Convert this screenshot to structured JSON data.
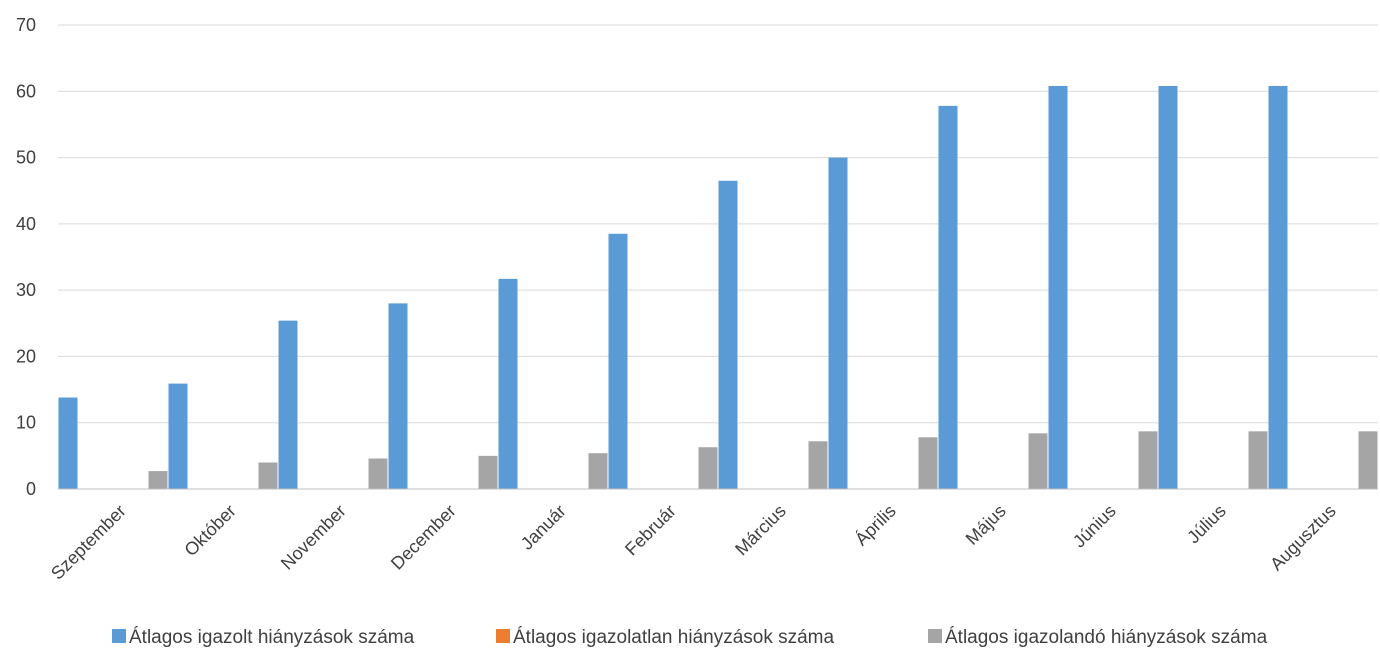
{
  "chart_data": {
    "type": "bar",
    "categories": [
      "Szeptember",
      "Október",
      "November",
      "December",
      "Január",
      "Február",
      "Március",
      "Április",
      "Május",
      "Június",
      "Július",
      "Augusztus"
    ],
    "series": [
      {
        "name": "Átlagos igazolt hiányzások száma",
        "color": "#5b9bd5",
        "values": [
          13.8,
          15.9,
          25.4,
          28.0,
          31.7,
          38.5,
          46.5,
          50.0,
          57.8,
          60.8,
          60.8,
          60.8
        ]
      },
      {
        "name": "Átlagos igazolatlan hiányzások száma",
        "color": "#ed7d31",
        "values": [
          0,
          0,
          0,
          0,
          0,
          0,
          0,
          0,
          0,
          0,
          0,
          0
        ]
      },
      {
        "name": "Átlagos igazolandó hiányzások száma",
        "color": "#a5a5a5",
        "values": [
          2.7,
          4.0,
          4.6,
          5.0,
          5.4,
          6.3,
          7.2,
          7.8,
          8.4,
          8.7,
          8.7,
          8.7
        ]
      }
    ],
    "yticks": [
      0,
      10,
      20,
      30,
      40,
      50,
      60,
      70
    ],
    "ylim": [
      0,
      70
    ],
    "grid": true,
    "legend": "bottom",
    "gridline_color": "#d9d9d9",
    "axis_color": "#bfbfbf"
  }
}
